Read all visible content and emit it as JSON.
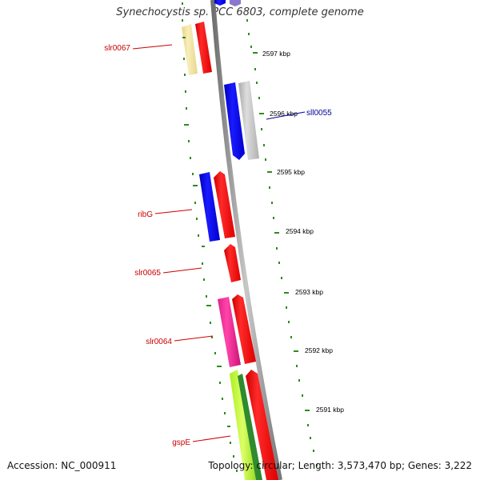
{
  "title": "Synechocystis sp. PCC 6803, complete genome",
  "accession": "Accession: NC_000911",
  "summary": "Topology: circular; Length: 3,573,470 bp; Genes: 3,222",
  "colors": {
    "backbone": "#8c8c8c",
    "tick": "#2e8b1e",
    "gene_label_forward": "#cc0000",
    "gene_label_reverse": "#000099",
    "red": "#ff0000",
    "blue": "#0000ee",
    "grey": "#c4c4c4",
    "yellow": "#f4e4a0",
    "pink": "#ff3399",
    "lime": "#ccff44",
    "green": "#2e8b2e",
    "purple": "#8877cc"
  },
  "kbp_markers": [
    "2597 kbp",
    "2596 kbp",
    "2595 kbp",
    "2594 kbp",
    "2593 kbp",
    "2592 kbp",
    "2591 kbp"
  ],
  "gene_labels": [
    {
      "name": "slr0067",
      "strand": "forward"
    },
    {
      "name": "sll0055",
      "strand": "reverse"
    },
    {
      "name": "ribG",
      "strand": "forward"
    },
    {
      "name": "slr0065",
      "strand": "forward"
    },
    {
      "name": "slr0064",
      "strand": "forward"
    },
    {
      "name": "gspE",
      "strand": "forward"
    }
  ]
}
